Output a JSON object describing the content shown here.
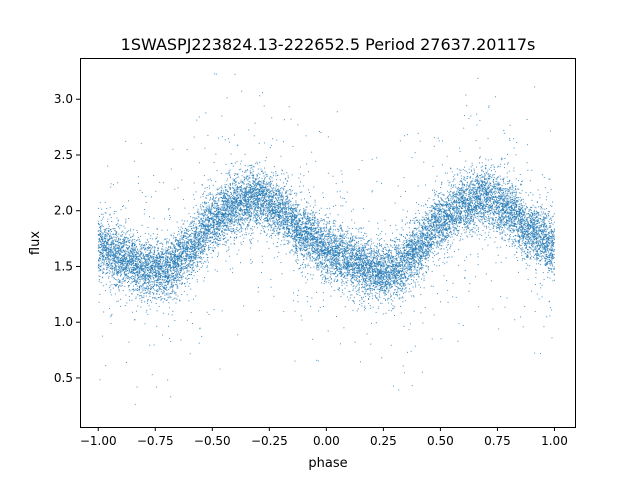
{
  "chart_data": {
    "type": "scatter",
    "title": "1SWASPJ223824.13-222652.5 Period 27637.20117s",
    "xlabel": "phase",
    "ylabel": "flux",
    "xlim": [
      -1.08,
      1.09
    ],
    "ylim": [
      0.06,
      3.37
    ],
    "x_ticks": [
      -1.0,
      -0.75,
      -0.5,
      -0.25,
      0.0,
      0.25,
      0.5,
      0.75,
      1.0
    ],
    "x_tick_labels": [
      "−1.00",
      "−0.75",
      "−0.50",
      "−0.25",
      "0.00",
      "0.25",
      "0.50",
      "0.75",
      "1.00"
    ],
    "y_ticks": [
      0.5,
      1.0,
      1.5,
      2.0,
      2.5,
      3.0
    ],
    "y_tick_labels": [
      "0.5",
      "1.0",
      "1.5",
      "2.0",
      "2.5",
      "3.0"
    ],
    "grid": false,
    "legend": "none",
    "marker_color": "#1f77b4",
    "x_range": [
      -1.0,
      1.0
    ],
    "light_curve_phase": [
      -1.0,
      -0.9,
      -0.8,
      -0.7,
      -0.6,
      -0.5,
      -0.4,
      -0.3,
      -0.2,
      -0.1,
      0.0,
      0.1,
      0.2,
      0.3,
      0.4,
      0.5,
      0.6,
      0.7,
      0.8,
      0.9,
      1.0
    ],
    "light_curve_flux": [
      1.68,
      1.58,
      1.48,
      1.47,
      1.65,
      1.9,
      2.05,
      2.12,
      2.0,
      1.8,
      1.66,
      1.55,
      1.47,
      1.47,
      1.65,
      1.9,
      2.05,
      2.12,
      2.0,
      1.8,
      1.68
    ],
    "scatter_width": 0.13,
    "outlier_fraction": 0.07,
    "outlier_range": [
      0.2,
      3.3
    ],
    "n_points": 16000
  }
}
